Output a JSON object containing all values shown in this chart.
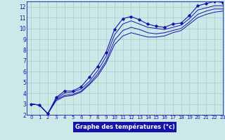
{
  "xlabel": "Graphe des températures (°c)",
  "xlim": [
    -0.5,
    23
  ],
  "ylim": [
    2,
    12.5
  ],
  "xticks": [
    0,
    1,
    2,
    3,
    4,
    5,
    6,
    7,
    8,
    9,
    10,
    11,
    12,
    13,
    14,
    15,
    16,
    17,
    18,
    19,
    20,
    21,
    22,
    23
  ],
  "yticks": [
    2,
    3,
    4,
    5,
    6,
    7,
    8,
    9,
    10,
    11,
    12
  ],
  "background_color": "#cce8e8",
  "grid_color": "#aacccc",
  "line_color": "#1414aa",
  "line1_y": [
    3.0,
    2.9,
    2.1,
    3.6,
    4.2,
    4.2,
    4.6,
    5.5,
    6.5,
    7.8,
    9.9,
    10.9,
    11.1,
    10.8,
    10.4,
    10.2,
    10.1,
    10.4,
    10.5,
    11.2,
    12.1,
    12.3,
    12.5,
    12.4
  ],
  "line2_y": [
    3.0,
    2.9,
    2.1,
    3.5,
    4.0,
    4.1,
    4.4,
    5.1,
    6.1,
    7.4,
    9.4,
    10.4,
    10.7,
    10.4,
    10.1,
    10.0,
    9.9,
    10.1,
    10.3,
    10.9,
    11.7,
    11.9,
    12.1,
    12.1
  ],
  "line3_y": [
    3.0,
    2.9,
    2.1,
    3.4,
    3.8,
    3.9,
    4.2,
    4.9,
    5.8,
    7.0,
    8.9,
    9.8,
    10.1,
    9.9,
    9.6,
    9.5,
    9.6,
    9.8,
    10.0,
    10.6,
    11.3,
    11.6,
    11.8,
    11.8
  ],
  "line4_y": [
    3.0,
    2.9,
    2.1,
    3.3,
    3.7,
    3.8,
    4.1,
    4.8,
    5.6,
    6.8,
    8.5,
    9.3,
    9.6,
    9.4,
    9.2,
    9.2,
    9.3,
    9.6,
    9.8,
    10.4,
    11.0,
    11.3,
    11.5,
    11.6
  ],
  "xlabel_fontsize": 6.0,
  "tick_fontsize_x": 5.0,
  "tick_fontsize_y": 5.5
}
